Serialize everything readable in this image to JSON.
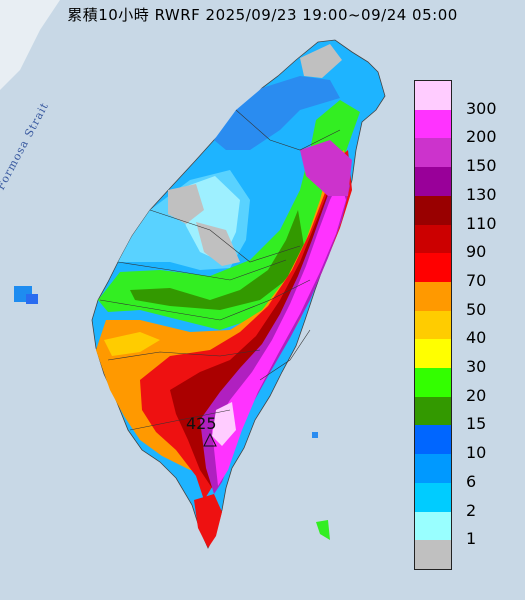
{
  "title": "累積10小時 RWRF 2025/09/23 19:00~09/24 05:00",
  "map_label": "Formosa Strait",
  "peak_value": "425",
  "legend": [
    {
      "label": "300",
      "color": "#ffccff"
    },
    {
      "label": "200",
      "color": "#ff33ff"
    },
    {
      "label": "150",
      "color": "#cc33cc"
    },
    {
      "label": "130",
      "color": "#990099"
    },
    {
      "label": "110",
      "color": "#990000"
    },
    {
      "label": "90",
      "color": "#cc0000"
    },
    {
      "label": "70",
      "color": "#ff0000"
    },
    {
      "label": "50",
      "color": "#ff9900"
    },
    {
      "label": "40",
      "color": "#ffcc00"
    },
    {
      "label": "30",
      "color": "#ffff00"
    },
    {
      "label": "20",
      "color": "#33ff00"
    },
    {
      "label": "15",
      "color": "#339900"
    },
    {
      "label": "10",
      "color": "#0066ff"
    },
    {
      "label": "6",
      "color": "#0099ff"
    },
    {
      "label": "2",
      "color": "#00ccff"
    },
    {
      "label": "1",
      "color": "#99ffff"
    },
    {
      "label": "",
      "color": "#c0c0c0"
    }
  ]
}
